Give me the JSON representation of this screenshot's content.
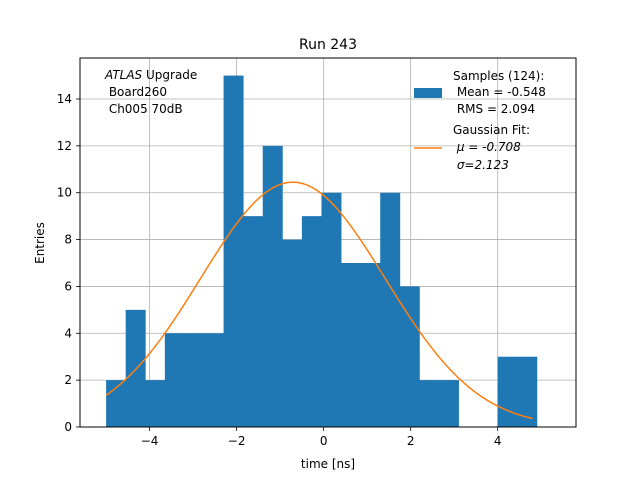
{
  "chart_data": {
    "type": "histogram",
    "title": "Run 243",
    "xlabel": "time [ns]",
    "ylabel": "Entries",
    "xlim": [
      -5.6,
      5.8
    ],
    "ylim": [
      0,
      15.75
    ],
    "grid": true,
    "xticks": [
      -4,
      -2,
      0,
      2,
      4
    ],
    "xtick_labels": [
      "−4",
      "−2",
      "0",
      "2",
      "4"
    ],
    "yticks": [
      0,
      2,
      4,
      6,
      8,
      10,
      12,
      14
    ],
    "ytick_labels": [
      "0",
      "2",
      "4",
      "6",
      "8",
      "10",
      "12",
      "14"
    ],
    "annotation": {
      "lines": [
        {
          "italic": "ATLAS",
          "rest": " Upgrade"
        },
        {
          "italic": "",
          "rest": " Board260"
        },
        {
          "italic": "",
          "rest": " Ch005 70dB"
        }
      ]
    },
    "bins": {
      "edges": [
        -5.0,
        -4.55,
        -4.1,
        -3.65,
        -3.2,
        -2.75,
        -2.3,
        -1.85,
        -1.4,
        -0.95,
        -0.5,
        -0.05,
        0.4,
        0.85,
        1.3,
        1.75,
        2.2,
        2.65,
        3.1,
        3.55,
        4.0,
        4.45,
        4.9
      ],
      "counts": [
        2,
        5,
        2,
        4,
        4,
        4,
        15,
        9,
        12,
        8,
        9,
        10,
        7,
        7,
        10,
        6,
        2,
        2,
        0,
        0,
        3,
        3
      ]
    },
    "fit": {
      "mu": -0.708,
      "sigma": 2.123,
      "amplitude": 10.45,
      "x_range": [
        -5.0,
        4.8
      ]
    },
    "legend": {
      "position": "top-right",
      "samples_label": "Samples (124):",
      "mean_label": " Mean = -0.548",
      "rms_label": " RMS = 2.094",
      "fit_label": "Gaussian Fit:",
      "mu_label": " μ = -0.708",
      "sigma_label": " σ=2.123"
    },
    "colors": {
      "bar": "#1f77b4",
      "fit": "#ff7f0e",
      "grid": "#b0b0b0"
    }
  }
}
